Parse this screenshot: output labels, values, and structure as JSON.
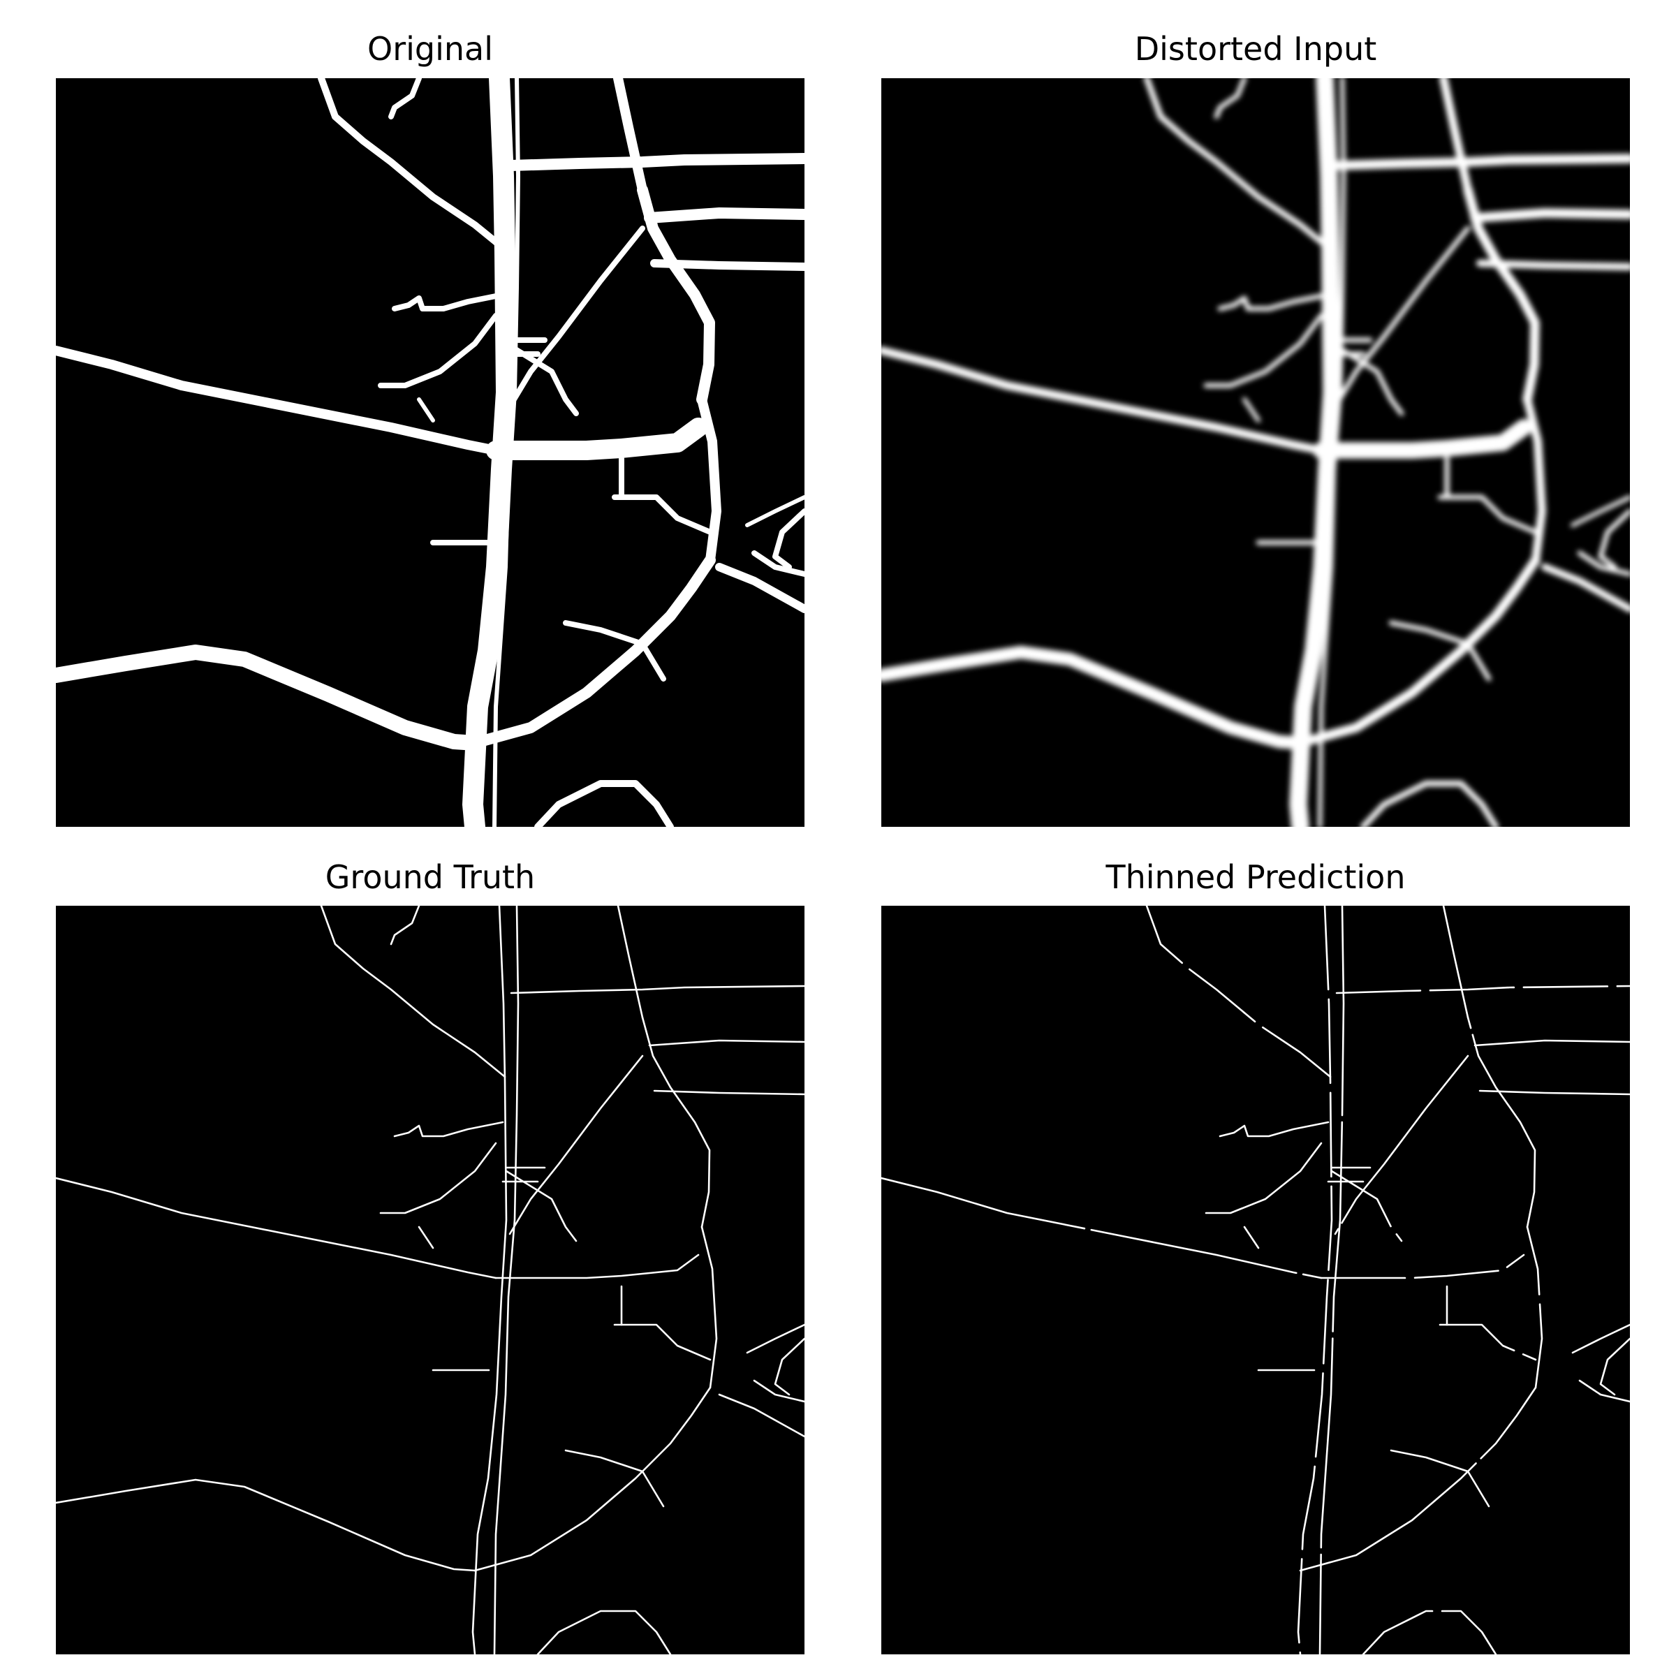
{
  "panels": [
    {
      "title": "Original",
      "style": "thick"
    },
    {
      "title": "Distorted Input",
      "style": "blurred"
    },
    {
      "title": "Ground Truth",
      "style": "thin"
    },
    {
      "title": "Thinned Prediction",
      "style": "thin-broken"
    }
  ],
  "colors": {
    "background": "#000000",
    "road": "#ffffff",
    "page": "#ffffff"
  }
}
